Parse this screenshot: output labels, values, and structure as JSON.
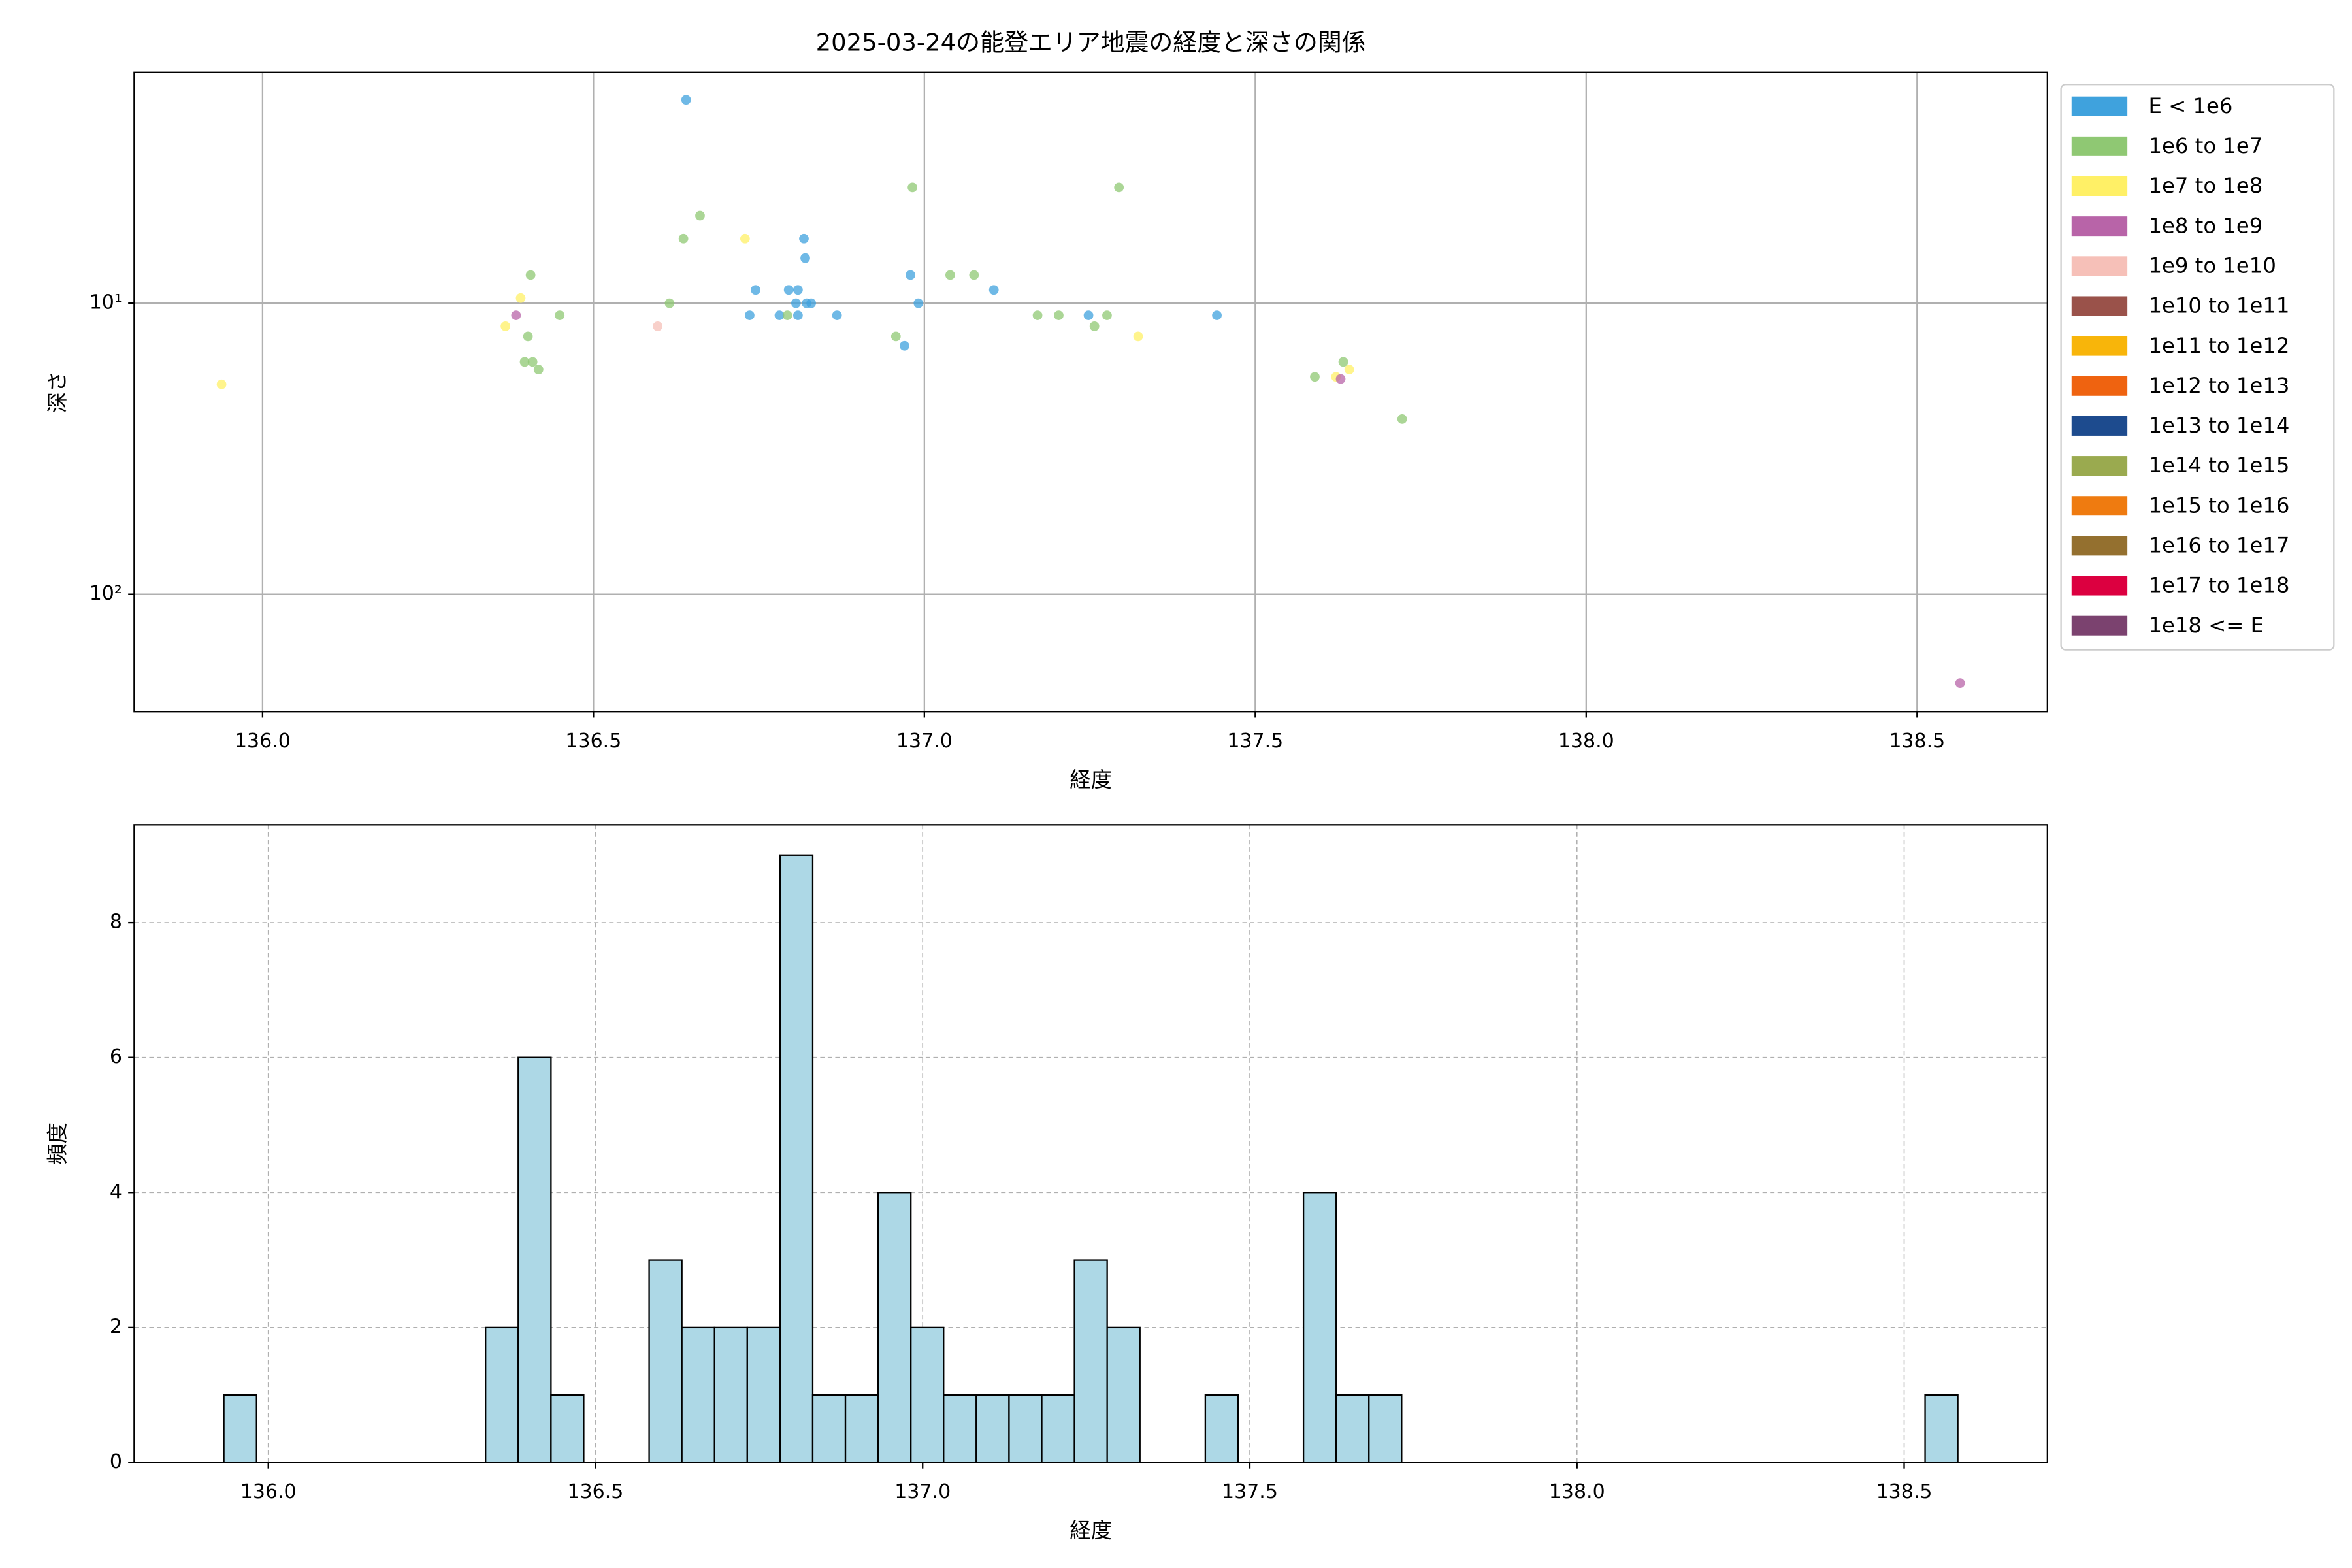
{
  "chart_data": [
    {
      "type": "scatter",
      "title": "2025-03-24の能登エリア地震の経度と深さの関係",
      "xlabel": "経度",
      "ylabel": "深さ",
      "xlim": [
        135.806,
        138.697
      ],
      "ylim": [
        1.61,
        253
      ],
      "yscale": "log",
      "yinvert": true,
      "grid": true,
      "legend": "outside upper right",
      "xticks": [
        {
          "value": 136,
          "label": "136.0"
        },
        {
          "value": 136.5,
          "label": "136.5"
        },
        {
          "value": 137,
          "label": "137.0"
        },
        {
          "value": 137.5,
          "label": "137.5"
        },
        {
          "value": 138,
          "label": "138.0"
        },
        {
          "value": 138.5,
          "label": "138.5"
        }
      ],
      "yticks": [
        {
          "value": 10,
          "label": "10¹"
        },
        {
          "value": 100,
          "label": "10²"
        }
      ],
      "series": [
        {
          "name": "E < 1e6",
          "color": "#3fa2dd",
          "x": [
            136.64,
            136.736,
            136.745,
            136.781,
            136.795,
            136.806,
            136.809,
            136.809,
            136.818,
            136.82,
            136.822,
            136.829,
            136.868,
            136.97,
            136.979,
            136.991,
            137.105,
            137.248,
            137.442
          ],
          "values": [
            2.0,
            11.0,
            9.0,
            11.0,
            9.0,
            10.0,
            9.0,
            11.0,
            6.0,
            7.0,
            10.0,
            10.0,
            11.0,
            14.0,
            8.0,
            10.0,
            9.0,
            11.0,
            11.0
          ]
        },
        {
          "name": "1e6 to 1e7",
          "color": "#8fc873",
          "x": [
            136.401,
            136.405,
            136.396,
            136.408,
            136.417,
            136.449,
            136.615,
            136.636,
            136.661,
            136.793,
            136.957,
            136.982,
            137.039,
            137.075,
            137.171,
            137.203,
            137.257,
            137.276,
            137.294,
            137.59,
            137.633,
            137.722
          ],
          "values": [
            13.0,
            8.0,
            15.9,
            15.9,
            16.9,
            11.0,
            10.0,
            6.0,
            5.0,
            11.0,
            13.0,
            4.0,
            8.0,
            8.0,
            11.0,
            11.0,
            12.0,
            11.0,
            4.0,
            17.9,
            15.9,
            25.0
          ]
        },
        {
          "name": "1e7 to 1e8",
          "color": "#fff066",
          "x": [
            135.938,
            136.367,
            136.39,
            136.729,
            137.323,
            137.622,
            137.642
          ],
          "values": [
            19.0,
            12.0,
            9.6,
            6.0,
            13.0,
            17.9,
            16.9
          ]
        },
        {
          "name": "1e8 to 1e9",
          "color": "#b864a8",
          "x": [
            136.383,
            137.629,
            138.565
          ],
          "values": [
            11.0,
            18.2,
            202
          ]
        },
        {
          "name": "1e9 to 1e10",
          "color": "#f6c0b8",
          "x": [
            136.597
          ],
          "values": [
            12.0
          ]
        },
        {
          "name": "1e10 to 1e11",
          "color": "#9a524a",
          "x": [],
          "values": []
        },
        {
          "name": "1e11 to 1e12",
          "color": "#f8b50a",
          "x": [],
          "values": []
        },
        {
          "name": "1e12 to 1e13",
          "color": "#ef6310",
          "x": [],
          "values": []
        },
        {
          "name": "1e13 to 1e14",
          "color": "#1d4b8e",
          "x": [],
          "values": []
        },
        {
          "name": "1e14 to 1e15",
          "color": "#9aaa4f",
          "x": [],
          "values": []
        },
        {
          "name": "1e15 to 1e16",
          "color": "#ef7b10",
          "x": [],
          "values": []
        },
        {
          "name": "1e16 to 1e17",
          "color": "#94702f",
          "x": [],
          "values": []
        },
        {
          "name": "1e17 to 1e18",
          "color": "#dc0040",
          "x": [],
          "values": []
        },
        {
          "name": "1e18 <= E",
          "color": "#7b426f",
          "x": [],
          "values": []
        }
      ]
    },
    {
      "type": "histogram",
      "xlabel": "経度",
      "ylabel": "頻度",
      "color": "#add8e6",
      "edgecolor": "#000000",
      "grid": true,
      "gridstyle": "dashed",
      "xlim": [
        135.795,
        138.719
      ],
      "ylim": [
        0,
        9.45
      ],
      "xticks": [
        {
          "value": 136,
          "label": "136.0"
        },
        {
          "value": 136.5,
          "label": "136.5"
        },
        {
          "value": 137,
          "label": "137.0"
        },
        {
          "value": 137.5,
          "label": "137.5"
        },
        {
          "value": 138,
          "label": "138.0"
        },
        {
          "value": 138.5,
          "label": "138.5"
        }
      ],
      "yticks": [
        0,
        2,
        4,
        6,
        8
      ],
      "bins": [
        135.932,
        135.982,
        136.032,
        136.082,
        136.132,
        136.182,
        136.232,
        136.282,
        136.332,
        136.382,
        136.432,
        136.482,
        136.532,
        136.582,
        136.632,
        136.682,
        136.732,
        136.782,
        136.832,
        136.882,
        136.932,
        136.982,
        137.032,
        137.082,
        137.132,
        137.182,
        137.232,
        137.282,
        137.332,
        137.382,
        137.432,
        137.482,
        137.532,
        137.582,
        137.632,
        137.682,
        137.732,
        137.782,
        137.832,
        137.882,
        137.932,
        137.982,
        138.032,
        138.082,
        138.132,
        138.182,
        138.232,
        138.282,
        138.332,
        138.382,
        138.432,
        138.482,
        138.532,
        138.582
      ],
      "values": [
        1,
        0,
        0,
        0,
        0,
        0,
        0,
        0,
        2,
        6,
        1,
        0,
        0,
        3,
        2,
        2,
        2,
        9,
        1,
        1,
        4,
        2,
        1,
        1,
        1,
        1,
        3,
        2,
        0,
        0,
        1,
        0,
        0,
        4,
        1,
        1,
        0,
        0,
        0,
        0,
        0,
        0,
        0,
        0,
        0,
        0,
        0,
        0,
        0,
        0,
        0,
        0,
        1
      ]
    }
  ]
}
